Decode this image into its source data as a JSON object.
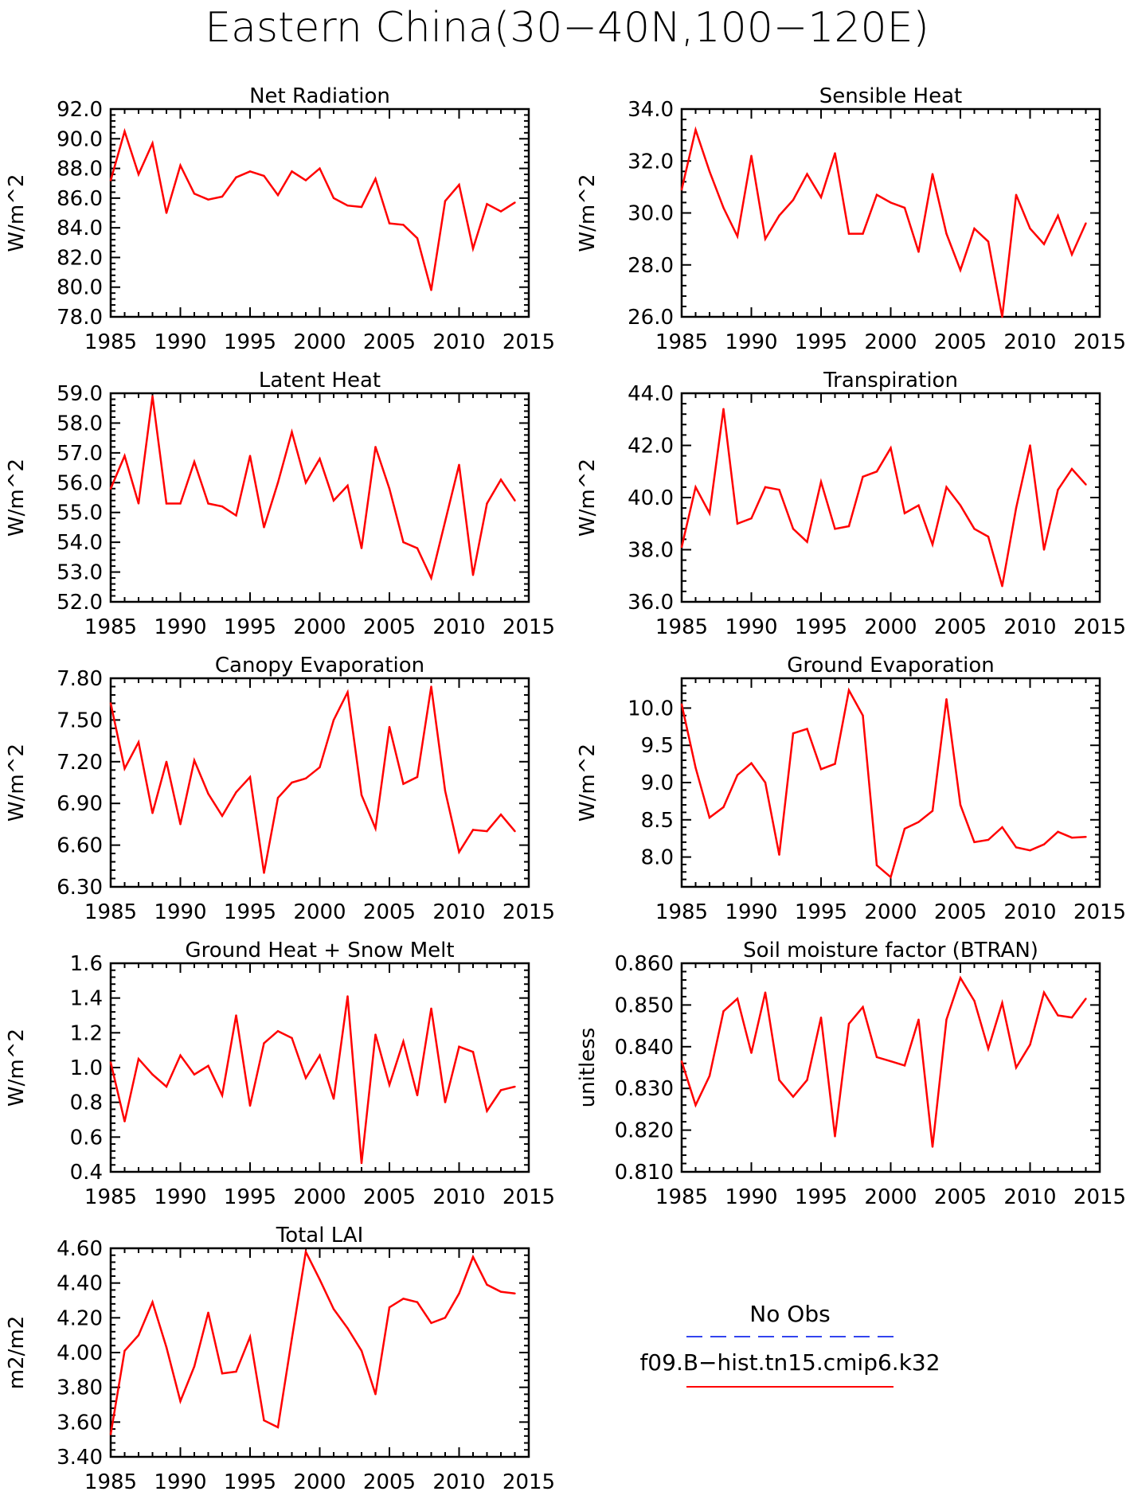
{
  "title": "Eastern China(30−40N,100−120E)",
  "legend": {
    "entries": [
      {
        "label": "No Obs",
        "color": "#3344ee",
        "dashed": true
      },
      {
        "label": "f09.B−hist.tn15.cmip6.k32",
        "color": "#ff0000",
        "dashed": false
      }
    ]
  },
  "line_color": "#ff0000",
  "chart_data": [
    {
      "type": "line",
      "title": "Net Radiation",
      "ylabel": "W/m^2",
      "xlim": [
        1985,
        2015
      ],
      "ylim": [
        78,
        92
      ],
      "xticks": [
        1985,
        1990,
        1995,
        2000,
        2005,
        2010,
        2015
      ],
      "yticks": [
        78,
        80,
        82,
        84,
        86,
        88,
        90,
        92
      ],
      "yfmt": 1,
      "x": [
        1985,
        1986,
        1987,
        1988,
        1989,
        1990,
        1991,
        1992,
        1993,
        1994,
        1995,
        1996,
        1997,
        1998,
        1999,
        2000,
        2001,
        2002,
        2003,
        2004,
        2005,
        2006,
        2007,
        2008,
        2009,
        2010,
        2011,
        2012,
        2013,
        2014
      ],
      "values": [
        87.2,
        90.5,
        87.6,
        89.7,
        85.0,
        88.2,
        86.3,
        85.9,
        86.1,
        87.4,
        87.8,
        87.5,
        86.2,
        87.8,
        87.2,
        88.0,
        86.0,
        85.5,
        85.4,
        87.3,
        84.3,
        84.2,
        83.3,
        79.8,
        85.8,
        86.9,
        82.6,
        85.6,
        85.1,
        85.7
      ]
    },
    {
      "type": "line",
      "title": "Sensible Heat",
      "ylabel": "W/m^2",
      "xlim": [
        1985,
        2015
      ],
      "ylim": [
        26,
        34
      ],
      "xticks": [
        1985,
        1990,
        1995,
        2000,
        2005,
        2010,
        2015
      ],
      "yticks": [
        26,
        28,
        30,
        32,
        34
      ],
      "yfmt": 1,
      "x": [
        1985,
        1986,
        1987,
        1988,
        1989,
        1990,
        1991,
        1992,
        1993,
        1994,
        1995,
        1996,
        1997,
        1998,
        1999,
        2000,
        2001,
        2002,
        2003,
        2004,
        2005,
        2006,
        2007,
        2008,
        2009,
        2010,
        2011,
        2012,
        2013,
        2014
      ],
      "values": [
        30.9,
        33.2,
        31.6,
        30.2,
        29.1,
        32.2,
        29.0,
        29.9,
        30.5,
        31.5,
        30.6,
        32.3,
        29.2,
        29.2,
        30.7,
        30.4,
        30.2,
        28.5,
        31.5,
        29.2,
        27.8,
        29.4,
        28.9,
        26.0,
        30.7,
        29.4,
        28.8,
        29.9,
        28.4,
        29.6
      ]
    },
    {
      "type": "line",
      "title": "Latent Heat",
      "ylabel": "W/m^2",
      "xlim": [
        1985,
        2015
      ],
      "ylim": [
        52,
        59
      ],
      "xticks": [
        1985,
        1990,
        1995,
        2000,
        2005,
        2010,
        2015
      ],
      "yticks": [
        52,
        53,
        54,
        55,
        56,
        57,
        58,
        59
      ],
      "yfmt": 1,
      "x": [
        1985,
        1986,
        1987,
        1988,
        1989,
        1990,
        1991,
        1992,
        1993,
        1994,
        1995,
        1996,
        1997,
        1998,
        1999,
        2000,
        2001,
        2002,
        2003,
        2004,
        2005,
        2006,
        2007,
        2008,
        2009,
        2010,
        2011,
        2012,
        2013,
        2014
      ],
      "values": [
        55.8,
        56.9,
        55.3,
        58.9,
        55.3,
        55.3,
        56.7,
        55.3,
        55.2,
        54.9,
        56.9,
        54.5,
        56.0,
        57.7,
        56.0,
        56.8,
        55.4,
        55.9,
        53.8,
        57.2,
        55.8,
        54.0,
        53.8,
        52.8,
        54.7,
        56.6,
        52.9,
        55.3,
        56.1,
        55.4
      ]
    },
    {
      "type": "line",
      "title": "Transpiration",
      "ylabel": "W/m^2",
      "xlim": [
        1985,
        2015
      ],
      "ylim": [
        36,
        44
      ],
      "xticks": [
        1985,
        1990,
        1995,
        2000,
        2005,
        2010,
        2015
      ],
      "yticks": [
        36,
        38,
        40,
        42,
        44
      ],
      "yfmt": 1,
      "x": [
        1985,
        1986,
        1987,
        1988,
        1989,
        1990,
        1991,
        1992,
        1993,
        1994,
        1995,
        1996,
        1997,
        1998,
        1999,
        2000,
        2001,
        2002,
        2003,
        2004,
        2005,
        2006,
        2007,
        2008,
        2009,
        2010,
        2011,
        2012,
        2013,
        2014
      ],
      "values": [
        38.1,
        40.4,
        39.4,
        43.4,
        39.0,
        39.2,
        40.4,
        40.3,
        38.8,
        38.3,
        40.6,
        38.8,
        38.9,
        40.8,
        41.0,
        41.9,
        39.4,
        39.7,
        38.2,
        40.4,
        39.7,
        38.8,
        38.5,
        36.6,
        39.6,
        42.0,
        38.0,
        40.3,
        41.1,
        40.5
      ]
    },
    {
      "type": "line",
      "title": "Canopy Evaporation",
      "ylabel": "W/m^2",
      "xlim": [
        1985,
        2015
      ],
      "ylim": [
        6.3,
        7.8
      ],
      "xticks": [
        1985,
        1990,
        1995,
        2000,
        2005,
        2010,
        2015
      ],
      "yticks": [
        6.3,
        6.6,
        6.9,
        7.2,
        7.5,
        7.8
      ],
      "yfmt": 2,
      "x": [
        1985,
        1986,
        1987,
        1988,
        1989,
        1990,
        1991,
        1992,
        1993,
        1994,
        1995,
        1996,
        1997,
        1998,
        1999,
        2000,
        2001,
        2002,
        2003,
        2004,
        2005,
        2006,
        2007,
        2008,
        2009,
        2010,
        2011,
        2012,
        2013,
        2014
      ],
      "values": [
        7.62,
        7.15,
        7.34,
        6.83,
        7.2,
        6.75,
        7.21,
        6.97,
        6.81,
        6.98,
        7.09,
        6.4,
        6.94,
        7.05,
        7.08,
        7.16,
        7.5,
        7.7,
        6.96,
        6.72,
        7.45,
        7.04,
        7.09,
        7.74,
        6.99,
        6.55,
        6.71,
        6.7,
        6.82,
        6.7
      ]
    },
    {
      "type": "line",
      "title": "Ground Evaporation",
      "ylabel": "W/m^2",
      "xlim": [
        1985,
        2015
      ],
      "ylim": [
        7.6,
        10.4
      ],
      "xticks": [
        1985,
        1990,
        1995,
        2000,
        2005,
        2010,
        2015
      ],
      "yticks": [
        8.0,
        8.5,
        9.0,
        9.5,
        10.0
      ],
      "yfmt": 1,
      "x": [
        1985,
        1986,
        1987,
        1988,
        1989,
        1990,
        1991,
        1992,
        1993,
        1994,
        1995,
        1996,
        1997,
        1998,
        1999,
        2000,
        2001,
        2002,
        2003,
        2004,
        2005,
        2006,
        2007,
        2008,
        2009,
        2010,
        2011,
        2012,
        2013,
        2014
      ],
      "values": [
        10.05,
        9.2,
        8.53,
        8.67,
        9.1,
        9.26,
        9.0,
        8.03,
        9.66,
        9.72,
        9.18,
        9.25,
        10.24,
        9.9,
        7.89,
        7.73,
        8.38,
        8.47,
        8.62,
        10.12,
        8.7,
        8.2,
        8.23,
        8.4,
        8.13,
        8.09,
        8.17,
        8.34,
        8.26,
        8.27
      ]
    },
    {
      "type": "line",
      "title": "Ground Heat + Snow Melt",
      "ylabel": "W/m^2",
      "xlim": [
        1985,
        2015
      ],
      "ylim": [
        0.4,
        1.6
      ],
      "xticks": [
        1985,
        1990,
        1995,
        2000,
        2005,
        2010,
        2015
      ],
      "yticks": [
        0.4,
        0.6,
        0.8,
        1.0,
        1.2,
        1.4,
        1.6
      ],
      "yfmt": 1,
      "x": [
        1985,
        1986,
        1987,
        1988,
        1989,
        1990,
        1991,
        1992,
        1993,
        1994,
        1995,
        1996,
        1997,
        1998,
        1999,
        2000,
        2001,
        2002,
        2003,
        2004,
        2005,
        2006,
        2007,
        2008,
        2009,
        2010,
        2011,
        2012,
        2013,
        2014
      ],
      "values": [
        1.03,
        0.69,
        1.05,
        0.96,
        0.89,
        1.07,
        0.96,
        1.01,
        0.84,
        1.3,
        0.78,
        1.14,
        1.21,
        1.17,
        0.94,
        1.07,
        0.82,
        1.41,
        0.45,
        1.19,
        0.9,
        1.15,
        0.84,
        1.34,
        0.8,
        1.12,
        1.09,
        0.75,
        0.87,
        0.89
      ]
    },
    {
      "type": "line",
      "title": "Soil moisture factor (BTRAN)",
      "ylabel": "unitless",
      "xlim": [
        1985,
        2015
      ],
      "ylim": [
        0.81,
        0.86
      ],
      "xticks": [
        1985,
        1990,
        1995,
        2000,
        2005,
        2010,
        2015
      ],
      "yticks": [
        0.81,
        0.82,
        0.83,
        0.84,
        0.85,
        0.86
      ],
      "yfmt": 3,
      "x": [
        1985,
        1986,
        1987,
        1988,
        1989,
        1990,
        1991,
        1992,
        1993,
        1994,
        1995,
        1996,
        1997,
        1998,
        1999,
        2000,
        2001,
        2002,
        2003,
        2004,
        2005,
        2006,
        2007,
        2008,
        2009,
        2010,
        2011,
        2012,
        2013,
        2014
      ],
      "values": [
        0.8365,
        0.826,
        0.833,
        0.8485,
        0.8515,
        0.8385,
        0.853,
        0.832,
        0.828,
        0.832,
        0.847,
        0.8185,
        0.8455,
        0.8495,
        0.8375,
        0.8365,
        0.8355,
        0.8465,
        0.816,
        0.8465,
        0.8565,
        0.851,
        0.8395,
        0.8505,
        0.835,
        0.8405,
        0.853,
        0.8475,
        0.847,
        0.8515
      ]
    },
    {
      "type": "line",
      "title": "Total LAI",
      "ylabel": "m2/m2",
      "xlim": [
        1985,
        2015
      ],
      "ylim": [
        3.4,
        4.6
      ],
      "xticks": [
        1985,
        1990,
        1995,
        2000,
        2005,
        2010,
        2015
      ],
      "yticks": [
        3.4,
        3.6,
        3.8,
        4.0,
        4.2,
        4.4,
        4.6
      ],
      "yfmt": 2,
      "x": [
        1985,
        1986,
        1987,
        1988,
        1989,
        1990,
        1991,
        1992,
        1993,
        1994,
        1995,
        1996,
        1997,
        1998,
        1999,
        2000,
        2001,
        2002,
        2003,
        2004,
        2005,
        2006,
        2007,
        2008,
        2009,
        2010,
        2011,
        2012,
        2013,
        2014
      ],
      "values": [
        3.53,
        4.01,
        4.1,
        4.29,
        4.03,
        3.72,
        3.92,
        4.23,
        3.88,
        3.89,
        4.09,
        3.61,
        3.57,
        4.08,
        4.58,
        4.42,
        4.25,
        4.14,
        4.01,
        3.76,
        4.26,
        4.31,
        4.29,
        4.17,
        4.2,
        4.34,
        4.55,
        4.39,
        4.35,
        4.34
      ]
    }
  ]
}
